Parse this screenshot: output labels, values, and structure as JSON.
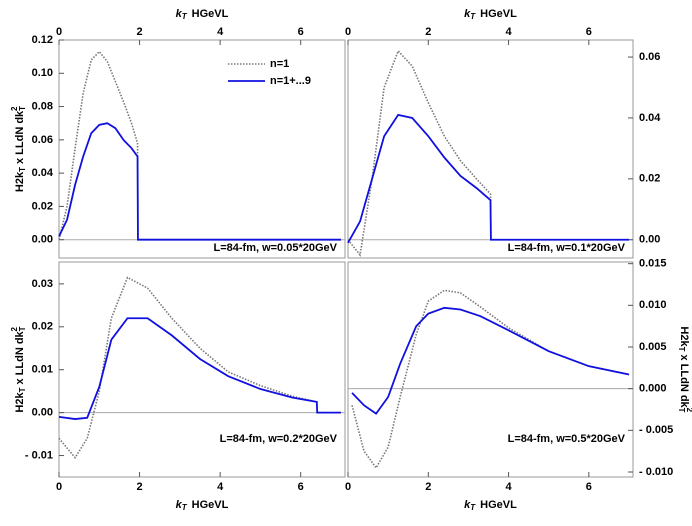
{
  "chart_data": [
    {
      "type": "line",
      "xlim": [
        0,
        7.1
      ],
      "ylim": [
        -0.011,
        0.12
      ],
      "xticks": [
        0,
        2,
        4,
        6
      ],
      "x_axis_side": "top",
      "y_axis_side": "left",
      "yticks": [
        {
          "value": 0,
          "label": "0.00"
        },
        {
          "value": 0.02,
          "label": "0.02"
        },
        {
          "value": 0.04,
          "label": "0.04"
        },
        {
          "value": 0.06,
          "label": "0.06"
        },
        {
          "value": 0.08,
          "label": "0.08"
        },
        {
          "value": 0.1,
          "label": "0.10"
        },
        {
          "value": 0.12,
          "label": "0.12"
        }
      ],
      "x_label": {
        "text": "k",
        "sub": "T",
        "unit": "HGeVL"
      },
      "y_label": [
        "H2k",
        "T",
        "x LLdN dk",
        "T",
        "2"
      ],
      "annotation": "L=84-fm, w=0.05*20GeV",
      "legend": true,
      "x": [
        0,
        0.2,
        0.4,
        0.6,
        0.8,
        1.0,
        1.2,
        1.4,
        1.6,
        1.8,
        1.95,
        1.96,
        3,
        4,
        5,
        6,
        7
      ],
      "series": [
        {
          "name": "n=1",
          "color": "#777777",
          "values": [
            0,
            0.02,
            0.055,
            0.088,
            0.108,
            0.113,
            0.107,
            0.095,
            0.083,
            0.07,
            0.058,
            0,
            0,
            0,
            0,
            0,
            0
          ]
        },
        {
          "name": "n=1+...9",
          "color": "#1010e0",
          "values": [
            0.002,
            0.012,
            0.033,
            0.05,
            0.064,
            0.069,
            0.07,
            0.067,
            0.06,
            0.055,
            0.05,
            0,
            0,
            0,
            0,
            0,
            0
          ]
        }
      ]
    },
    {
      "type": "line",
      "xlim": [
        0,
        7.1
      ],
      "ylim": [
        -0.006,
        0.0656
      ],
      "xticks": [
        0,
        2,
        4,
        6
      ],
      "x_axis_side": "top",
      "y_axis_side": "right",
      "yticks": [
        {
          "value": 0,
          "label": "0.00"
        },
        {
          "value": 0.02,
          "label": "0.02"
        },
        {
          "value": 0.04,
          "label": "0.04"
        },
        {
          "value": 0.06,
          "label": "0.06"
        }
      ],
      "x_label": {
        "text": "k",
        "sub": "T",
        "unit": "HGeVL"
      },
      "annotation": "L=84-fm, w=0.1*20GeV",
      "legend": false,
      "x": [
        0,
        0.3,
        0.6,
        0.9,
        1.25,
        1.6,
        2.0,
        2.4,
        2.8,
        3.2,
        3.55,
        3.56,
        5,
        7
      ],
      "series": [
        {
          "color": "#777777",
          "values": [
            0,
            -0.005,
            0.02,
            0.05,
            0.062,
            0.057,
            0.045,
            0.034,
            0.026,
            0.02,
            0.015,
            0,
            0,
            0
          ]
        },
        {
          "color": "#1010e0",
          "values": [
            -0.001,
            0.006,
            0.02,
            0.034,
            0.041,
            0.04,
            0.034,
            0.027,
            0.021,
            0.017,
            0.013,
            0,
            0,
            0
          ]
        }
      ]
    },
    {
      "type": "line",
      "xlim": [
        0,
        7.1
      ],
      "ylim": [
        -0.015,
        0.0351
      ],
      "xticks": [
        0,
        2,
        4,
        6
      ],
      "x_axis_side": "bottom",
      "y_axis_side": "left",
      "yticks": [
        {
          "value": -0.01,
          "label": "- 0.01"
        },
        {
          "value": 0,
          "label": "0.00"
        },
        {
          "value": 0.01,
          "label": "0.01"
        },
        {
          "value": 0.02,
          "label": "0.02"
        },
        {
          "value": 0.03,
          "label": "0.03"
        }
      ],
      "x_label": {
        "text": "k",
        "sub": "T",
        "unit": "HGeVL"
      },
      "y_label": [
        "H2k",
        "T",
        "x LLdN dk",
        "T",
        "2"
      ],
      "annotation": "L=84-fm, w=0.2*20GeV",
      "legend": false,
      "x": [
        0,
        0.4,
        0.7,
        1.0,
        1.3,
        1.7,
        2.2,
        2.8,
        3.5,
        4.2,
        5,
        5.8,
        6.4,
        6.41,
        7
      ],
      "series": [
        {
          "color": "#777777",
          "values": [
            -0.006,
            -0.0105,
            -0.006,
            0.005,
            0.022,
            0.0315,
            0.029,
            0.022,
            0.015,
            0.0095,
            0.0063,
            0.0038,
            0.0025,
            0,
            0
          ]
        },
        {
          "color": "#1010e0",
          "values": [
            -0.001,
            -0.0015,
            -0.0012,
            0.006,
            0.017,
            0.022,
            0.022,
            0.018,
            0.0125,
            0.0085,
            0.0055,
            0.0035,
            0.0025,
            0,
            0
          ]
        }
      ]
    },
    {
      "type": "line",
      "xlim": [
        0,
        7.1
      ],
      "ylim": [
        -0.0106,
        0.0152
      ],
      "xticks": [
        0,
        2,
        4,
        6
      ],
      "x_axis_side": "bottom",
      "y_axis_side": "right",
      "yticks": [
        {
          "value": -0.01,
          "label": "- 0.010"
        },
        {
          "value": -0.005,
          "label": "- 0.005"
        },
        {
          "value": 0,
          "label": "0.000"
        },
        {
          "value": 0.005,
          "label": "0.005"
        },
        {
          "value": 0.01,
          "label": "0.010"
        },
        {
          "value": 0.015,
          "label": "0.015"
        }
      ],
      "x_label": {
        "text": "k",
        "sub": "T",
        "unit": "HGeVL"
      },
      "y_label": [
        "H2k",
        "T",
        "x LLdN dk",
        "T",
        "2"
      ],
      "annotation": "L=84-fm, w=0.5*20GeV",
      "legend": false,
      "x": [
        0.1,
        0.4,
        0.7,
        1.0,
        1.3,
        1.7,
        2.0,
        2.4,
        2.8,
        3.3,
        4,
        5,
        6,
        7
      ],
      "series": [
        {
          "color": "#777777",
          "values": [
            -0.002,
            -0.0075,
            -0.0095,
            -0.007,
            -0.001,
            0.0065,
            0.0105,
            0.0118,
            0.0115,
            0.0098,
            0.0073,
            0.0045,
            0.0027,
            0.0017
          ]
        },
        {
          "color": "#1010e0",
          "values": [
            -0.0005,
            -0.002,
            -0.003,
            -0.001,
            0.003,
            0.0075,
            0.009,
            0.0097,
            0.0095,
            0.0087,
            0.007,
            0.0045,
            0.0027,
            0.0017
          ]
        }
      ]
    }
  ]
}
